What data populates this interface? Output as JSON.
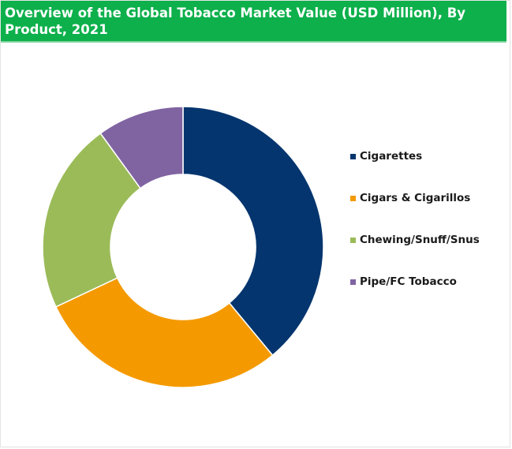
{
  "header": {
    "title": "Overview of the Global Tobacco Market Value (USD Million), By Product, 2021"
  },
  "chart_data": {
    "type": "pie",
    "donut": true,
    "title": "Overview of the Global Tobacco Market Value (USD Million), By Product, 2021",
    "categories": [
      "Cigarettes",
      "Cigars & Cigarillos",
      "Chewing/Snuff/Snus",
      "Pipe/FC Tobacco"
    ],
    "values": [
      39,
      29,
      22,
      10
    ],
    "colors": [
      "#04356e",
      "#f49a00",
      "#9bbb59",
      "#8064a2"
    ],
    "legend": "right"
  }
}
